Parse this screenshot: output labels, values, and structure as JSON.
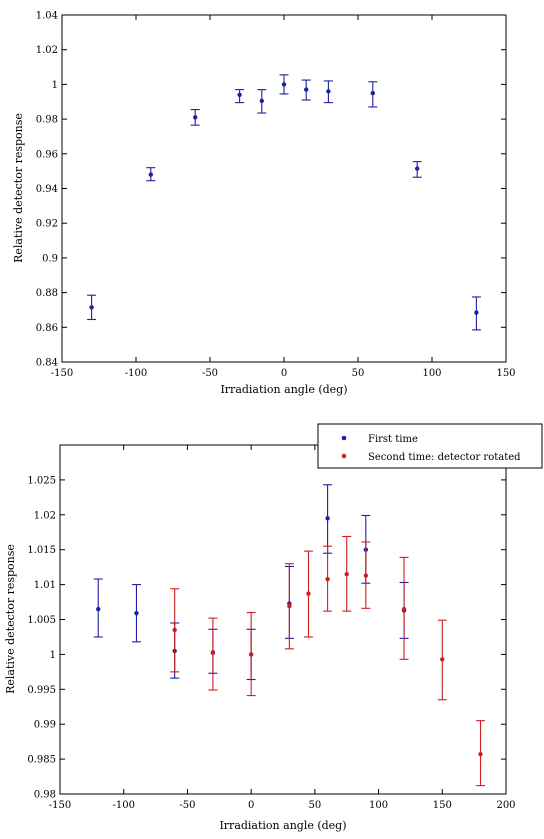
{
  "chart_data": [
    {
      "type": "scatter",
      "xlabel": "Irradiation angle (deg)",
      "ylabel": "Relative detector response",
      "xlim": [
        -150,
        150
      ],
      "ylim": [
        0.84,
        1.04
      ],
      "xticks": [
        -150,
        -100,
        -50,
        0,
        50,
        100,
        150
      ],
      "xtick_labels": [
        "-150",
        "-100",
        "-50",
        "0",
        "50",
        "100",
        "150"
      ],
      "yticks": [
        0.84,
        0.86,
        0.88,
        0.9,
        0.92,
        0.94,
        0.96,
        0.98,
        1.0,
        1.02,
        1.04
      ],
      "ytick_labels": [
        "0.84",
        "0.86",
        "0.88",
        "0.9",
        "0.92",
        "0.94",
        "0.96",
        "0.98",
        "1",
        "1.02",
        "1.04"
      ],
      "grid": false,
      "series": [
        {
          "color": "#1f1fa0",
          "points": [
            {
              "x": -130,
              "y": 0.8715,
              "lo": 0.8645,
              "hi": 0.8785
            },
            {
              "x": -90,
              "y": 0.948,
              "lo": 0.9445,
              "hi": 0.952
            },
            {
              "x": -60,
              "y": 0.981,
              "lo": 0.9765,
              "hi": 0.9855
            },
            {
              "x": -30,
              "y": 0.994,
              "lo": 0.9895,
              "hi": 0.997
            },
            {
              "x": -15,
              "y": 0.9905,
              "lo": 0.9835,
              "hi": 0.997
            },
            {
              "x": 0,
              "y": 1.0,
              "lo": 0.9945,
              "hi": 1.0055
            },
            {
              "x": 15,
              "y": 0.997,
              "lo": 0.991,
              "hi": 1.0025
            },
            {
              "x": 30,
              "y": 0.996,
              "lo": 0.9895,
              "hi": 1.002
            },
            {
              "x": 60,
              "y": 0.995,
              "lo": 0.987,
              "hi": 1.0015
            },
            {
              "x": 90,
              "y": 0.9515,
              "lo": 0.9465,
              "hi": 0.9555
            },
            {
              "x": 130,
              "y": 0.8685,
              "lo": 0.8585,
              "hi": 0.8775
            }
          ]
        }
      ]
    },
    {
      "type": "scatter",
      "xlabel": "Irradiation angle (deg)",
      "ylabel": "Relative detector response",
      "xlim": [
        -150,
        200
      ],
      "ylim": [
        0.98,
        1.03
      ],
      "xticks": [
        -150,
        -100,
        -50,
        0,
        50,
        100,
        150,
        200
      ],
      "xtick_labels": [
        "-150",
        "-100",
        "-50",
        "0",
        "50",
        "100",
        "150",
        "200"
      ],
      "yticks": [
        0.98,
        0.985,
        0.99,
        0.995,
        1.0,
        1.005,
        1.01,
        1.015,
        1.02,
        1.025
      ],
      "ytick_labels": [
        "0.98",
        "0.985",
        "0.99",
        "0.995",
        "1",
        "1.005",
        "1.01",
        "1.015",
        "1.02",
        "1.025"
      ],
      "grid": false,
      "legend": {
        "placement": "top-right, above axes"
      },
      "series": [
        {
          "name": "First time",
          "color": "#1f1fa0",
          "points": [
            {
              "x": -120,
              "y": 1.0065,
              "lo": 1.0025,
              "hi": 1.0108
            },
            {
              "x": -90,
              "y": 1.0059,
              "lo": 1.0018,
              "hi": 1.01
            },
            {
              "x": -60,
              "y": 1.0005,
              "lo": 0.9966,
              "hi": 1.0045
            },
            {
              "x": -30,
              "y": 1.0003,
              "lo": 0.9973,
              "hi": 1.0036
            },
            {
              "x": 0,
              "y": 1.0,
              "lo": 0.9964,
              "hi": 1.0036
            },
            {
              "x": 30,
              "y": 1.0073,
              "lo": 1.0023,
              "hi": 1.0126
            },
            {
              "x": 60,
              "y": 1.0195,
              "lo": 1.0145,
              "hi": 1.0243
            },
            {
              "x": 90,
              "y": 1.015,
              "lo": 1.0102,
              "hi": 1.0199
            },
            {
              "x": 120,
              "y": 1.0063,
              "lo": 1.0023,
              "hi": 1.0103
            }
          ]
        },
        {
          "name": "Second time: detector rotated",
          "color": "#cc1f1f",
          "points": [
            {
              "x": -60,
              "y": 1.0035,
              "lo": 0.9975,
              "hi": 1.0094
            },
            {
              "x": -30,
              "y": 1.0002,
              "lo": 0.9949,
              "hi": 1.0052
            },
            {
              "x": 0,
              "y": 1.0,
              "lo": 0.9941,
              "hi": 1.006
            },
            {
              "x": 30,
              "y": 1.0069,
              "lo": 1.0008,
              "hi": 1.013
            },
            {
              "x": 45,
              "y": 1.0087,
              "lo": 1.0025,
              "hi": 1.0148
            },
            {
              "x": 60,
              "y": 1.0108,
              "lo": 1.0062,
              "hi": 1.0155
            },
            {
              "x": 75,
              "y": 1.0115,
              "lo": 1.0062,
              "hi": 1.0169
            },
            {
              "x": 90,
              "y": 1.0113,
              "lo": 1.0066,
              "hi": 1.0161
            },
            {
              "x": 120,
              "y": 1.0065,
              "lo": 0.9993,
              "hi": 1.0139
            },
            {
              "x": 150,
              "y": 0.9993,
              "lo": 0.9935,
              "hi": 1.0049
            },
            {
              "x": 180,
              "y": 0.9857,
              "lo": 0.9812,
              "hi": 0.9905
            }
          ]
        }
      ]
    }
  ]
}
